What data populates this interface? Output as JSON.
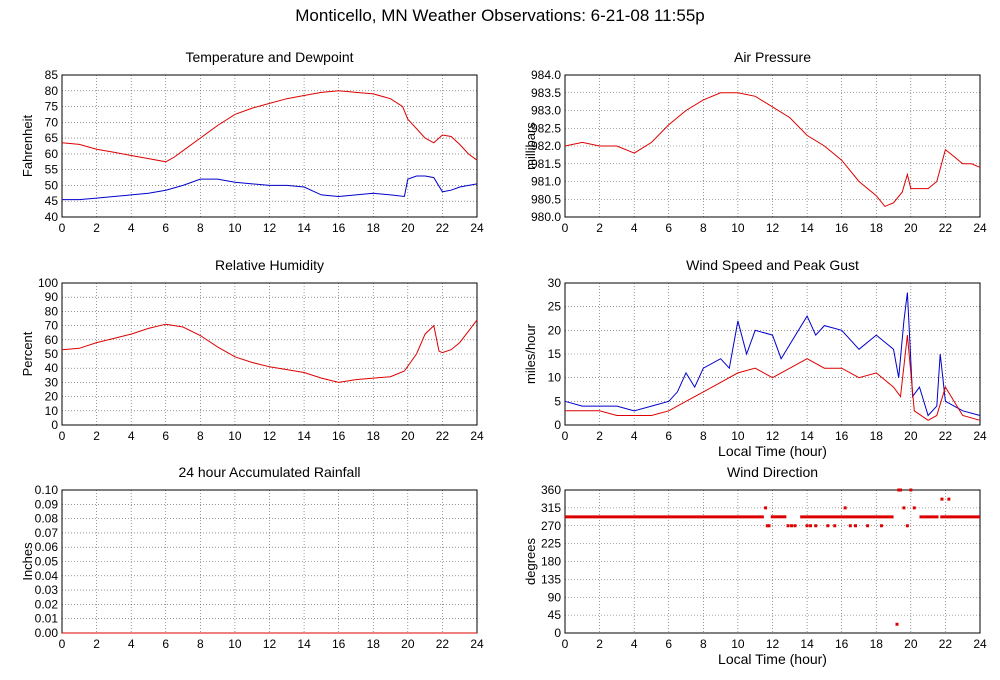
{
  "title": "Monticello, MN Weather Observations: 6-21-08 11:55p",
  "colors": {
    "red": "#dd0000",
    "blue": "#0000cc",
    "grid": "#555555"
  },
  "chart_data": [
    {
      "id": "temp",
      "type": "line",
      "title": "Temperature and Dewpoint",
      "xlabel": "",
      "ylabel": "Fahrenheit",
      "xlim": [
        0,
        24
      ],
      "ylim": [
        40,
        85
      ],
      "xticks": [
        0,
        2,
        4,
        6,
        8,
        10,
        12,
        14,
        16,
        18,
        20,
        22,
        24
      ],
      "yticks": [
        "40",
        "45",
        "50",
        "55",
        "60",
        "65",
        "70",
        "75",
        "80",
        "85"
      ],
      "grid": true,
      "series": [
        {
          "color": "#dd0000",
          "x": [
            0,
            1,
            2,
            3,
            4,
            5,
            6,
            6.5,
            7,
            8,
            9,
            10,
            11,
            12,
            13,
            14,
            15,
            16,
            17,
            18,
            19,
            19.7,
            20,
            20.5,
            21,
            21.5,
            22,
            22.5,
            23,
            23.5,
            24
          ],
          "y": [
            63.5,
            63,
            61.5,
            60.5,
            59.5,
            58.5,
            57.5,
            59,
            61,
            65,
            69,
            72.5,
            74.5,
            76,
            77.5,
            78.5,
            79.5,
            80,
            79.5,
            79,
            77.5,
            75,
            71,
            68,
            65,
            63.5,
            66,
            65.5,
            63,
            60,
            58
          ]
        },
        {
          "color": "#0000cc",
          "x": [
            0,
            1,
            2,
            3,
            4,
            5,
            6,
            7,
            8,
            9,
            10,
            11,
            12,
            13,
            14,
            15,
            16,
            17,
            18,
            19,
            19.8,
            20,
            20.5,
            21,
            21.5,
            22,
            22.5,
            23,
            24
          ],
          "y": [
            45.5,
            45.5,
            46,
            46.5,
            47,
            47.5,
            48.5,
            50,
            52,
            52,
            51,
            50.5,
            50,
            50,
            49.5,
            47,
            46.5,
            47,
            47.5,
            47,
            46.5,
            52,
            53,
            53,
            52.5,
            48,
            48.5,
            49.5,
            50.5
          ]
        }
      ]
    },
    {
      "id": "pressure",
      "type": "line",
      "title": "Air Pressure",
      "xlabel": "",
      "ylabel": "millibars",
      "xlim": [
        0,
        24
      ],
      "ylim": [
        980.0,
        984.0
      ],
      "xticks": [
        0,
        2,
        4,
        6,
        8,
        10,
        12,
        14,
        16,
        18,
        20,
        22,
        24
      ],
      "yticks": [
        "980.0",
        "980.5",
        "981.0",
        "981.5",
        "982.0",
        "982.5",
        "983.0",
        "983.5",
        "984.0"
      ],
      "grid": true,
      "series": [
        {
          "color": "#dd0000",
          "x": [
            0,
            1,
            2,
            3,
            4,
            5,
            6,
            7,
            8,
            9,
            10,
            11,
            12,
            13,
            14,
            15,
            16,
            17,
            18,
            18.5,
            19,
            19.5,
            19.8,
            20,
            21,
            21.5,
            22,
            22.5,
            23,
            23.5,
            24
          ],
          "y": [
            982.0,
            982.1,
            982.0,
            982.0,
            981.8,
            982.1,
            982.6,
            983.0,
            983.3,
            983.5,
            983.5,
            983.4,
            983.1,
            982.8,
            982.3,
            982.0,
            981.6,
            981.0,
            980.6,
            980.3,
            980.4,
            980.7,
            981.2,
            980.8,
            980.8,
            981.0,
            981.9,
            981.7,
            981.5,
            981.5,
            981.4
          ]
        }
      ]
    },
    {
      "id": "humidity",
      "type": "line",
      "title": "Relative Humidity",
      "xlabel": "",
      "ylabel": "Percent",
      "xlim": [
        0,
        24
      ],
      "ylim": [
        0,
        100
      ],
      "xticks": [
        0,
        2,
        4,
        6,
        8,
        10,
        12,
        14,
        16,
        18,
        20,
        22,
        24
      ],
      "yticks": [
        "0",
        "10",
        "20",
        "30",
        "40",
        "50",
        "60",
        "70",
        "80",
        "90",
        "100"
      ],
      "grid": true,
      "series": [
        {
          "color": "#dd0000",
          "x": [
            0,
            1,
            2,
            3,
            4,
            5,
            6,
            7,
            8,
            9,
            10,
            11,
            12,
            13,
            14,
            15,
            16,
            17,
            18,
            19,
            19.8,
            20.5,
            21,
            21.5,
            21.8,
            22,
            22.5,
            23,
            23.5,
            24
          ],
          "y": [
            53,
            54,
            58,
            61,
            64,
            68,
            71,
            69,
            63,
            55,
            48,
            44,
            41,
            39,
            37,
            33,
            30,
            32,
            33,
            34,
            38,
            50,
            64,
            70,
            52,
            51,
            53,
            58,
            66,
            74
          ]
        }
      ]
    },
    {
      "id": "wind",
      "type": "line",
      "title": "Wind Speed and Peak Gust",
      "xlabel": "Local Time (hour)",
      "ylabel": "miles/hour",
      "xlim": [
        0,
        24
      ],
      "ylim": [
        0,
        30
      ],
      "xticks": [
        0,
        2,
        4,
        6,
        8,
        10,
        12,
        14,
        16,
        18,
        20,
        22,
        24
      ],
      "yticks": [
        "0",
        "5",
        "10",
        "15",
        "20",
        "25",
        "30"
      ],
      "grid": true,
      "series": [
        {
          "color": "#0000cc",
          "x": [
            0,
            1,
            2,
            3,
            4,
            5,
            6,
            6.5,
            7,
            7.5,
            8,
            9,
            9.5,
            10,
            10.5,
            11,
            12,
            12.5,
            13,
            14,
            14.5,
            15,
            16,
            17,
            18,
            19,
            19.3,
            19.6,
            19.8,
            20.1,
            20.5,
            21,
            21.5,
            21.7,
            22,
            22.5,
            23,
            24
          ],
          "y": [
            5,
            4,
            4,
            4,
            3,
            4,
            5,
            7,
            11,
            8,
            12,
            14,
            12,
            22,
            15,
            20,
            19,
            14,
            17,
            23,
            19,
            21,
            20,
            16,
            19,
            16,
            10,
            22,
            28,
            6,
            8,
            2,
            4,
            15,
            5,
            4,
            3,
            2
          ]
        },
        {
          "color": "#dd0000",
          "x": [
            0,
            1,
            2,
            3,
            4,
            5,
            6,
            7,
            8,
            9,
            10,
            11,
            12,
            13,
            14,
            15,
            16,
            17,
            18,
            19,
            19.4,
            19.8,
            20.2,
            21,
            21.5,
            22,
            23,
            24
          ],
          "y": [
            3,
            3,
            3,
            2,
            2,
            2,
            3,
            5,
            7,
            9,
            11,
            12,
            10,
            12,
            14,
            12,
            12,
            10,
            11,
            8,
            6,
            19,
            3,
            1,
            2,
            8,
            2,
            1
          ]
        }
      ]
    },
    {
      "id": "rain",
      "type": "line",
      "title": "24 hour Accumulated Rainfall",
      "xlabel": "",
      "ylabel": "Inches",
      "xlim": [
        0,
        24
      ],
      "ylim": [
        0,
        0.1
      ],
      "xticks": [
        0,
        2,
        4,
        6,
        8,
        10,
        12,
        14,
        16,
        18,
        20,
        22,
        24
      ],
      "yticks": [
        "0.00",
        "0.01",
        "0.02",
        "0.03",
        "0.04",
        "0.05",
        "0.06",
        "0.07",
        "0.08",
        "0.09",
        "0.10"
      ],
      "grid": true,
      "series": [
        {
          "color": "#dd0000",
          "x": [
            0,
            24
          ],
          "y": [
            0,
            0
          ]
        }
      ]
    },
    {
      "id": "direction",
      "type": "scatter",
      "title": "Wind Direction",
      "xlabel": "Local Time (hour)",
      "ylabel": "degrees",
      "xlim": [
        0,
        24
      ],
      "ylim": [
        0,
        360
      ],
      "xticks": [
        0,
        2,
        4,
        6,
        8,
        10,
        12,
        14,
        16,
        18,
        20,
        22,
        24
      ],
      "yticks": [
        "0",
        "45",
        "90",
        "135",
        "180",
        "225",
        "270",
        "315",
        "360"
      ],
      "grid": true,
      "series": [
        {
          "color": "#dd0000",
          "x": [
            11.6,
            11.7,
            11.8,
            12.9,
            13.1,
            13.3,
            14.0,
            14.2,
            14.5,
            15.2,
            15.6,
            16.2,
            16.5,
            16.8,
            17.5,
            18.3,
            19.2,
            19.3,
            19.4,
            19.6,
            19.8,
            20.0,
            20.2,
            21.8,
            22.2
          ],
          "y": [
            315,
            270,
            270,
            270,
            270,
            270,
            270,
            270,
            270,
            270,
            270,
            315,
            270,
            270,
            270,
            270,
            22,
            360,
            360,
            315,
            270,
            360,
            315,
            337,
            337
          ]
        }
      ],
      "band": {
        "y": 292.5,
        "segments": [
          [
            0,
            11.5
          ],
          [
            11.9,
            12.8
          ],
          [
            13.6,
            19.0
          ],
          [
            20.5,
            21.6
          ],
          [
            21.7,
            24
          ]
        ]
      }
    }
  ]
}
